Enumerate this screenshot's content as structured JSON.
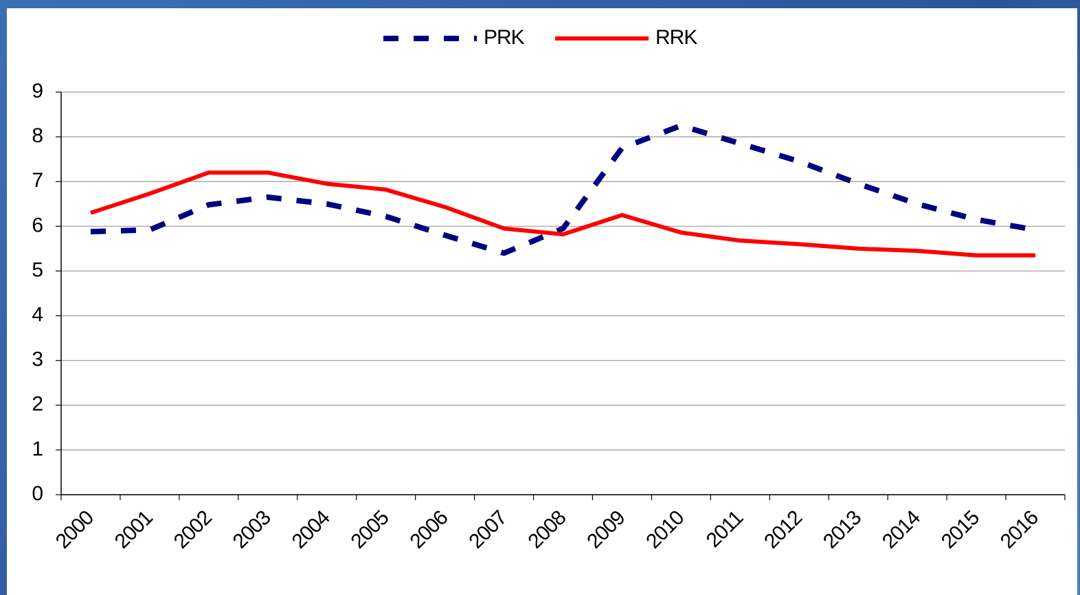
{
  "chart_data": {
    "type": "line",
    "categories": [
      "2000",
      "2001",
      "2002",
      "2003",
      "2004",
      "2005",
      "2006",
      "2007",
      "2008",
      "2009",
      "2010",
      "2011",
      "2012",
      "2013",
      "2014",
      "2015",
      "2016"
    ],
    "series": [
      {
        "name": "PRK",
        "color": "#000080",
        "dashed": true,
        "values": [
          5.88,
          5.92,
          6.48,
          6.65,
          6.5,
          6.22,
          5.8,
          5.4,
          5.95,
          7.75,
          8.25,
          7.85,
          7.45,
          6.95,
          6.5,
          6.15,
          5.92
        ]
      },
      {
        "name": "RRK",
        "color": "#ff0000",
        "dashed": false,
        "values": [
          6.3,
          6.73,
          7.2,
          7.2,
          6.95,
          6.82,
          6.43,
          5.95,
          5.82,
          6.25,
          5.86,
          5.68,
          5.6,
          5.5,
          5.45,
          5.35,
          5.35
        ]
      }
    ],
    "ylim": [
      0,
      9
    ],
    "yticks": [
      0,
      1,
      2,
      3,
      4,
      5,
      6,
      7,
      8,
      9
    ],
    "grid": true,
    "legend": "top"
  }
}
